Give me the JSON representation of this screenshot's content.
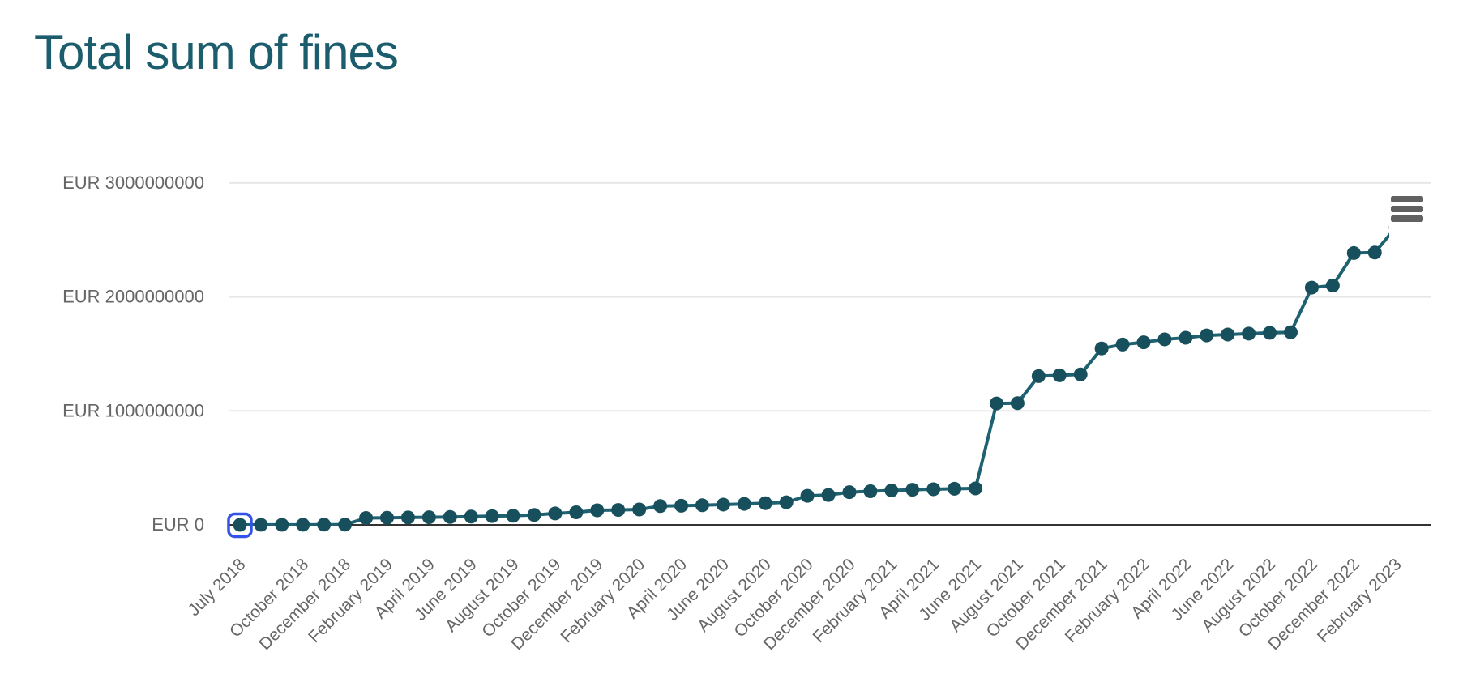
{
  "header": {
    "title": "Total sum of fines",
    "title_color": "#1c5d6d"
  },
  "toolbar": {
    "export_menu_icon": "hamburger-icon",
    "icon_color": "#616161"
  },
  "chart_data": {
    "type": "line",
    "title": "Total sum of fines",
    "xlabel": "",
    "ylabel": "EUR",
    "currency_prefix": "EUR",
    "grid": "horizontal-only",
    "legend": "none",
    "ylim": [
      0,
      3200000000
    ],
    "series_color": "#1e6170",
    "marker_color": "#17505c",
    "axis_line_color": "#333333",
    "gridline_color": "#e7e7e7",
    "axis_label_color": "#666666",
    "focus_ring_color": "#3453e8",
    "focused_point_index": 0,
    "y_ticks": [
      {
        "value": 0,
        "label": "EUR 0"
      },
      {
        "value": 1000000000,
        "label": "EUR 1000000000"
      },
      {
        "value": 2000000000,
        "label": "EUR 2000000000"
      },
      {
        "value": 3000000000,
        "label": "EUR 3000000000"
      }
    ],
    "x_ticks": [
      {
        "label": "July 2018",
        "month_index": 0
      },
      {
        "label": "October 2018",
        "month_index": 3
      },
      {
        "label": "December 2018",
        "month_index": 5
      },
      {
        "label": "February 2019",
        "month_index": 7
      },
      {
        "label": "April 2019",
        "month_index": 9
      },
      {
        "label": "June 2019",
        "month_index": 11
      },
      {
        "label": "August 2019",
        "month_index": 13
      },
      {
        "label": "October 2019",
        "month_index": 15
      },
      {
        "label": "December 2019",
        "month_index": 17
      },
      {
        "label": "February 2020",
        "month_index": 19
      },
      {
        "label": "April 2020",
        "month_index": 21
      },
      {
        "label": "June 2020",
        "month_index": 23
      },
      {
        "label": "August 2020",
        "month_index": 25
      },
      {
        "label": "October 2020",
        "month_index": 27
      },
      {
        "label": "December 2020",
        "month_index": 29
      },
      {
        "label": "February 2021",
        "month_index": 31
      },
      {
        "label": "April 2021",
        "month_index": 33
      },
      {
        "label": "June 2021",
        "month_index": 35
      },
      {
        "label": "August 2021",
        "month_index": 37
      },
      {
        "label": "October 2021",
        "month_index": 39
      },
      {
        "label": "December 2021",
        "month_index": 41
      },
      {
        "label": "February 2022",
        "month_index": 43
      },
      {
        "label": "April 2022",
        "month_index": 45
      },
      {
        "label": "June 2022",
        "month_index": 47
      },
      {
        "label": "August 2022",
        "month_index": 49
      },
      {
        "label": "October 2022",
        "month_index": 51
      },
      {
        "label": "December 2022",
        "month_index": 53
      },
      {
        "label": "February 2023",
        "month_index": 55
      }
    ],
    "categories": [
      "July 2018",
      "August 2018",
      "September 2018",
      "October 2018",
      "November 2018",
      "December 2018",
      "January 2019",
      "February 2019",
      "March 2019",
      "April 2019",
      "May 2019",
      "June 2019",
      "July 2019",
      "August 2019",
      "September 2019",
      "October 2019",
      "November 2019",
      "December 2019",
      "January 2020",
      "February 2020",
      "March 2020",
      "April 2020",
      "May 2020",
      "June 2020",
      "July 2020",
      "August 2020",
      "September 2020",
      "October 2020",
      "November 2020",
      "December 2020",
      "January 2021",
      "February 2021",
      "March 2021",
      "April 2021",
      "May 2021",
      "June 2021",
      "July 2021",
      "August 2021",
      "September 2021",
      "October 2021",
      "November 2021",
      "December 2021",
      "January 2022",
      "February 2022",
      "March 2022",
      "April 2022",
      "May 2022",
      "June 2022",
      "July 2022",
      "August 2022",
      "September 2022",
      "October 2022",
      "November 2022",
      "December 2022",
      "January 2023",
      "February 2023"
    ],
    "values_eur": [
      400000,
      500000,
      600000,
      1000000,
      1500000,
      2000000,
      60000000,
      62000000,
      65000000,
      67000000,
      69000000,
      73000000,
      77000000,
      80000000,
      87000000,
      100000000,
      110000000,
      128000000,
      131000000,
      135000000,
      165000000,
      168000000,
      172000000,
      178000000,
      184000000,
      190000000,
      198000000,
      255000000,
      262000000,
      287000000,
      295000000,
      302000000,
      308000000,
      313000000,
      317000000,
      320000000,
      1065000000,
      1068000000,
      1305000000,
      1312000000,
      1320000000,
      1548000000,
      1582000000,
      1602000000,
      1628000000,
      1642000000,
      1662000000,
      1670000000,
      1678000000,
      1685000000,
      1690000000,
      2082000000,
      2100000000,
      2385000000,
      2390000000,
      2610000000
    ]
  }
}
